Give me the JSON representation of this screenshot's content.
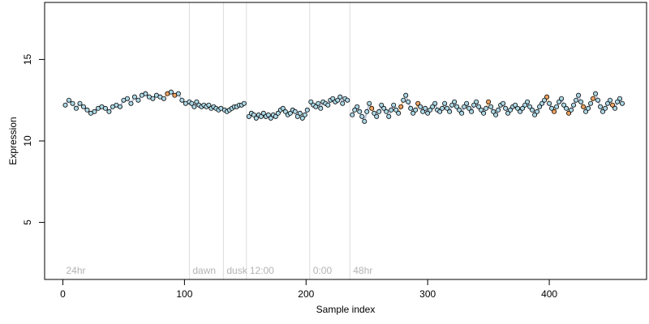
{
  "chart_data": {
    "type": "scatter",
    "title": "",
    "xlabel": "Sample index",
    "ylabel": "Expression",
    "xlim": [
      -15,
      480
    ],
    "ylim": [
      1.5,
      18.5
    ],
    "x_ticks": [
      0,
      100,
      200,
      300,
      400
    ],
    "y_ticks": [
      5,
      10,
      15
    ],
    "grid": false,
    "legend": "none",
    "colors": {
      "point_fill": "#add8e6",
      "point_edge": "#000000",
      "highlight_fill": "#f4a460",
      "line_blue": "#7a8fb5",
      "line_orange": "#f0a040",
      "divider": "#dcdcdc",
      "section_label": "#b3b3b3"
    },
    "sections": [
      {
        "label": "24hr",
        "start": 0,
        "end": 104
      },
      {
        "label": "dawn",
        "start": 104,
        "end": 132
      },
      {
        "label": "dusk",
        "start": 132,
        "end": 151
      },
      {
        "label": "12:00",
        "start": 151,
        "end": 203
      },
      {
        "label": "0:00",
        "start": 203,
        "end": 236
      },
      {
        "label": "48hr",
        "start": 236,
        "end": 462
      }
    ],
    "dividers": [
      104,
      132,
      151,
      203,
      236
    ],
    "series": [
      {
        "segment": "24hr",
        "x": [
          2,
          5,
          8,
          11,
          14,
          17,
          20,
          23,
          26,
          29,
          32,
          35,
          38,
          41,
          44,
          47,
          50,
          53,
          56,
          59,
          62,
          65,
          68,
          71,
          74,
          77,
          80,
          83,
          86,
          89,
          92,
          95,
          98,
          101,
          104
        ],
        "y": [
          12.2,
          12.5,
          12.3,
          12.0,
          12.3,
          12.1,
          11.9,
          11.7,
          11.8,
          12.0,
          12.1,
          12.0,
          11.8,
          12.1,
          12.2,
          12.1,
          12.5,
          12.6,
          12.3,
          12.7,
          12.5,
          12.8,
          12.9,
          12.7,
          12.6,
          12.8,
          12.7,
          12.6,
          12.9,
          13.0,
          12.8,
          12.9,
          12.5,
          12.3,
          12.4
        ]
      },
      {
        "segment": "dawn",
        "x": [
          106,
          108,
          110,
          112,
          114,
          116,
          118,
          120,
          122,
          124,
          126,
          128,
          130
        ],
        "y": [
          12.3,
          12.1,
          12.4,
          12.2,
          12.1,
          12.2,
          12.1,
          12.2,
          12.0,
          12.1,
          12.0,
          11.9,
          12.0
        ]
      },
      {
        "segment": "dusk",
        "x": [
          133,
          135,
          137,
          139,
          141,
          143,
          145,
          147,
          149
        ],
        "y": [
          11.9,
          11.8,
          11.9,
          12.0,
          12.1,
          12.1,
          12.2,
          12.2,
          12.3
        ]
      },
      {
        "segment": "12:00",
        "x": [
          153,
          155,
          157,
          159,
          161,
          163,
          165,
          167,
          169,
          171,
          173,
          175,
          177,
          179,
          181,
          183,
          185,
          187,
          189,
          191,
          193,
          195,
          197,
          199,
          201
        ],
        "y": [
          11.5,
          11.7,
          11.6,
          11.4,
          11.6,
          11.5,
          11.7,
          11.5,
          11.6,
          11.4,
          11.6,
          11.5,
          11.7,
          11.9,
          12.0,
          11.8,
          11.6,
          11.7,
          11.9,
          11.8,
          11.5,
          11.7,
          11.4,
          11.6,
          11.9
        ]
      },
      {
        "segment": "0:00",
        "x": [
          204,
          206,
          208,
          210,
          212,
          214,
          216,
          218,
          220,
          222,
          224,
          226,
          228,
          230,
          232,
          234
        ],
        "y": [
          12.4,
          12.2,
          12.1,
          12.3,
          12.0,
          12.4,
          12.3,
          12.2,
          12.5,
          12.6,
          12.4,
          12.5,
          12.7,
          12.3,
          12.6,
          12.5
        ]
      },
      {
        "segment": "48hr",
        "x": [
          238,
          240,
          242,
          244,
          246,
          248,
          250,
          252,
          254,
          256,
          258,
          260,
          262,
          264,
          266,
          268,
          270,
          272,
          274,
          276,
          278,
          280,
          282,
          284,
          286,
          288,
          290,
          292,
          294,
          296,
          298,
          300,
          302,
          304,
          306,
          308,
          310,
          312,
          314,
          316,
          318,
          320,
          322,
          324,
          326,
          328,
          330,
          332,
          334,
          336,
          338,
          340,
          342,
          344,
          346,
          348,
          350,
          352,
          354,
          356,
          358,
          360,
          362,
          364,
          366,
          368,
          370,
          372,
          374,
          376,
          378,
          380,
          382,
          384,
          386,
          388,
          390,
          392,
          394,
          396,
          398,
          400,
          402,
          404,
          406,
          408,
          410,
          412,
          414,
          416,
          418,
          420,
          422,
          424,
          426,
          428,
          430,
          432,
          434,
          436,
          438,
          440,
          442,
          444,
          446,
          448,
          450,
          452,
          454,
          456,
          458,
          460
        ],
        "y": [
          11.6,
          11.9,
          12.1,
          11.8,
          11.5,
          11.2,
          11.8,
          12.3,
          12.0,
          11.7,
          11.5,
          11.8,
          12.2,
          12.0,
          11.8,
          11.5,
          11.9,
          12.2,
          11.9,
          11.7,
          12.1,
          12.5,
          12.8,
          12.4,
          12.0,
          11.7,
          11.9,
          12.3,
          12.1,
          11.8,
          12.0,
          11.7,
          11.9,
          12.1,
          12.3,
          11.9,
          11.8,
          12.0,
          12.3,
          12.0,
          11.8,
          12.2,
          12.4,
          12.1,
          11.9,
          11.7,
          12.1,
          12.3,
          12.0,
          11.8,
          12.2,
          12.4,
          12.1,
          11.9,
          11.7,
          12.0,
          12.4,
          12.1,
          11.8,
          11.6,
          11.9,
          12.2,
          12.3,
          12.0,
          11.7,
          11.9,
          12.1,
          12.2,
          12.0,
          11.8,
          12.0,
          12.2,
          12.4,
          12.1,
          11.9,
          11.6,
          11.8,
          12.1,
          12.3,
          12.5,
          12.7,
          12.3,
          12.0,
          11.8,
          12.1,
          12.4,
          12.6,
          12.2,
          12.0,
          11.7,
          11.9,
          12.2,
          12.5,
          12.8,
          12.4,
          12.1,
          11.8,
          12.0,
          12.3,
          12.6,
          12.9,
          12.5,
          12.1,
          11.8,
          12.0,
          12.3,
          12.5,
          12.2,
          12.0,
          12.4,
          12.6,
          12.3
        ]
      }
    ],
    "highlighted_x": [
      86,
      92,
      97,
      152,
      254,
      278,
      292,
      350,
      398,
      404,
      416,
      428,
      436,
      452
    ]
  }
}
